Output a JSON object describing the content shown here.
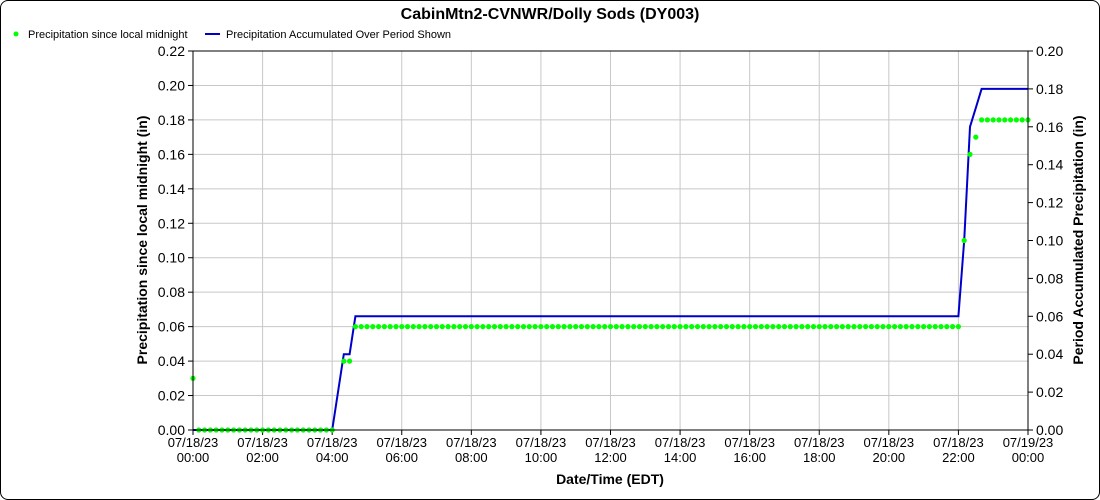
{
  "chart_data": {
    "type": "line",
    "title": "CabinMtn2-CVNWR/Dolly Sods (DY003)",
    "xlabel": "Date/Time (EDT)",
    "ylabel_left": "Precipitation since local midnight (in)",
    "ylabel_right": "Period Accumulated Precipitation (in)",
    "x_ticks": [
      {
        "date": "07/18/23",
        "time": "00:00"
      },
      {
        "date": "07/18/23",
        "time": "02:00"
      },
      {
        "date": "07/18/23",
        "time": "04:00"
      },
      {
        "date": "07/18/23",
        "time": "06:00"
      },
      {
        "date": "07/18/23",
        "time": "08:00"
      },
      {
        "date": "07/18/23",
        "time": "10:00"
      },
      {
        "date": "07/18/23",
        "time": "12:00"
      },
      {
        "date": "07/18/23",
        "time": "14:00"
      },
      {
        "date": "07/18/23",
        "time": "16:00"
      },
      {
        "date": "07/18/23",
        "time": "18:00"
      },
      {
        "date": "07/18/23",
        "time": "20:00"
      },
      {
        "date": "07/18/23",
        "time": "22:00"
      },
      {
        "date": "07/19/23",
        "time": "00:00"
      }
    ],
    "x_range": [
      "07/18/23 00:00",
      "07/19/23 00:00"
    ],
    "ylim_left": [
      0,
      0.22
    ],
    "yticks_left": [
      "0.00",
      "0.02",
      "0.04",
      "0.06",
      "0.08",
      "0.10",
      "0.12",
      "0.14",
      "0.16",
      "0.18",
      "0.20",
      "0.22"
    ],
    "ylim_right": [
      0,
      0.2
    ],
    "yticks_right": [
      "0.00",
      "0.02",
      "0.04",
      "0.06",
      "0.08",
      "0.10",
      "0.12",
      "0.14",
      "0.16",
      "0.18",
      "0.20"
    ],
    "grid": true,
    "legend_position": "top-left",
    "series": [
      {
        "name": "Precipitation since local midnight",
        "kind": "scatter",
        "axis": "left",
        "color": "#00ff00",
        "segments": [
          {
            "x": [
              "07/18/23 00:00"
            ],
            "value": 0.03
          },
          {
            "from": "07/18/23 00:10",
            "to": "07/18/23 04:00",
            "value": 0.0
          },
          {
            "from": "07/18/23 04:20",
            "to": "07/18/23 04:30",
            "value": 0.04
          },
          {
            "from": "07/18/23 04:40",
            "to": "07/18/23 22:00",
            "value": 0.06
          }
        ],
        "points": [
          {
            "x": "07/18/23 22:10",
            "y": 0.11
          },
          {
            "x": "07/18/23 22:20",
            "y": 0.16
          },
          {
            "x": "07/18/23 22:30",
            "y": 0.17
          },
          {
            "from": "07/18/23 22:40",
            "to": "07/19/23 00:00",
            "value": 0.18
          }
        ],
        "interval_minutes": 10
      },
      {
        "name": "Precipitation Accumulated Over Period Shown",
        "kind": "line",
        "axis": "right",
        "color": "#0000cc",
        "points": [
          {
            "x": "07/18/23 00:00",
            "y": 0.0
          },
          {
            "x": "07/18/23 04:00",
            "y": 0.0
          },
          {
            "x": "07/18/23 04:20",
            "y": 0.04
          },
          {
            "x": "07/18/23 04:30",
            "y": 0.04
          },
          {
            "x": "07/18/23 04:40",
            "y": 0.06
          },
          {
            "x": "07/18/23 22:00",
            "y": 0.06
          },
          {
            "x": "07/18/23 22:10",
            "y": 0.1
          },
          {
            "x": "07/18/23 22:20",
            "y": 0.16
          },
          {
            "x": "07/18/23 22:30",
            "y": 0.17
          },
          {
            "x": "07/18/23 22:40",
            "y": 0.18
          },
          {
            "x": "07/19/23 00:00",
            "y": 0.18
          }
        ]
      }
    ]
  }
}
